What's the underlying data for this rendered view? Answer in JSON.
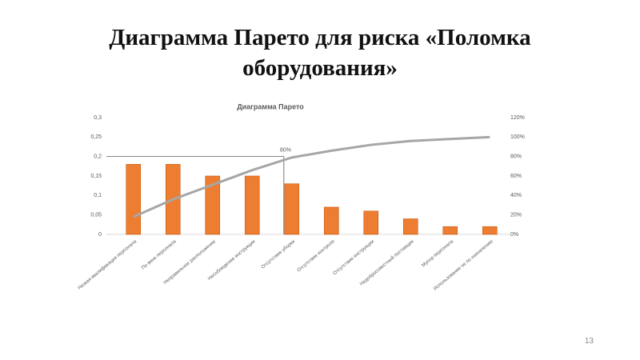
{
  "slide": {
    "title": "Диаграмма Парето для риска «Поломка оборудования»",
    "page_number": "13"
  },
  "chart_data": {
    "type": "pareto",
    "title": "Диаграмма Парето",
    "categories": [
      "Низкая квалификация персонала",
      "По вине персонала",
      "Неправильное расположение",
      "Несоблюдение инструкции",
      "Отсутствие уборки",
      "Отсутствие контроля",
      "Отсутствие инструкции",
      "Недобросовестный поставщик",
      "Мусор персонала",
      "Использование не по назначению"
    ],
    "series": [
      {
        "color": "#ed7d31",
        "values": [
          0.18,
          0.18,
          0.15,
          0.15,
          0.13,
          0.07,
          0.06,
          0.04,
          0.02,
          0.02
        ]
      },
      {
        "color": "#a6a6a6",
        "axis": "y2",
        "values": [
          18,
          36,
          51,
          66,
          79,
          86,
          92,
          96,
          98,
          100
        ]
      }
    ],
    "ylim": [
      0,
      0.3
    ],
    "yticks": [
      0,
      {
        "value": 0.05,
        "label": "0,05"
      },
      {
        "value": 0.1,
        "label": "0,1"
      },
      {
        "value": 0.15,
        "label": "0,15"
      },
      {
        "value": 0.2,
        "label": "0,2"
      },
      {
        "value": 0.25,
        "label": "0,25"
      },
      {
        "value": 0.3,
        "label": "0,3"
      }
    ],
    "y2lim": [
      0,
      120
    ],
    "y2ticks": [
      {
        "value": 0,
        "label": "0%"
      },
      {
        "value": 20,
        "label": "20%"
      },
      {
        "value": 40,
        "label": "40%"
      },
      {
        "value": 60,
        "label": "60%"
      },
      {
        "value": 80,
        "label": "80%"
      },
      {
        "value": 100,
        "label": "100%"
      },
      {
        "value": 120,
        "label": "120%"
      }
    ],
    "threshold": {
      "value": 80,
      "label": "80%"
    },
    "grid": false
  }
}
